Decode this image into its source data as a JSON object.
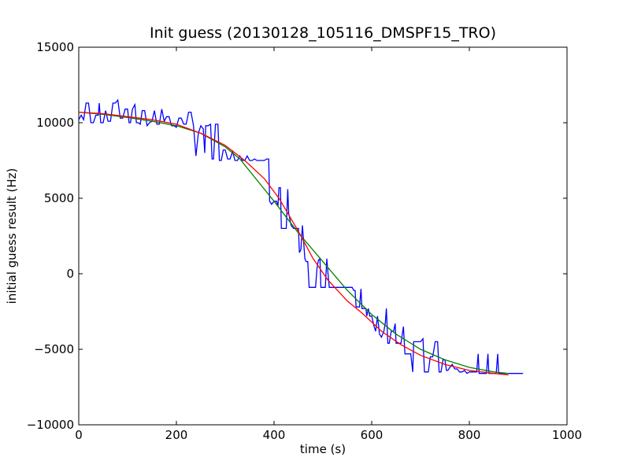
{
  "chart_data": {
    "type": "line",
    "title": "Init guess (20130128_105116_DMSPF15_TRO)",
    "xlabel": "time (s)",
    "ylabel": "initial guess result (Hz)",
    "xlim": [
      0,
      1000
    ],
    "ylim": [
      -10000,
      15000
    ],
    "xticks": [
      0,
      200,
      400,
      600,
      800,
      1000
    ],
    "yticks": [
      -10000,
      -5000,
      0,
      5000,
      10000,
      15000
    ],
    "xtick_labels": [
      "0",
      "200",
      "400",
      "600",
      "800",
      "1000"
    ],
    "ytick_labels": [
      "−10000",
      "−5000",
      "0",
      "5000",
      "10000",
      "15000"
    ],
    "grid": false,
    "legend": "none",
    "series": [
      {
        "color": "#0000ff",
        "points": [
          [
            0,
            10200
          ],
          [
            5,
            10500
          ],
          [
            10,
            10200
          ],
          [
            15,
            11300
          ],
          [
            20,
            11300
          ],
          [
            25,
            10000
          ],
          [
            30,
            10000
          ],
          [
            35,
            10500
          ],
          [
            40,
            10500
          ],
          [
            42,
            11300
          ],
          [
            45,
            10000
          ],
          [
            50,
            10000
          ],
          [
            55,
            10800
          ],
          [
            60,
            10100
          ],
          [
            65,
            10100
          ],
          [
            70,
            11300
          ],
          [
            75,
            11300
          ],
          [
            80,
            11500
          ],
          [
            85,
            10300
          ],
          [
            90,
            10300
          ],
          [
            95,
            10900
          ],
          [
            100,
            10900
          ],
          [
            103,
            10000
          ],
          [
            106,
            10000
          ],
          [
            110,
            10900
          ],
          [
            115,
            11200
          ],
          [
            118,
            10000
          ],
          [
            122,
            10000
          ],
          [
            126,
            9900
          ],
          [
            130,
            10800
          ],
          [
            135,
            10800
          ],
          [
            140,
            9800
          ],
          [
            145,
            10000
          ],
          [
            150,
            10100
          ],
          [
            155,
            10800
          ],
          [
            160,
            9900
          ],
          [
            165,
            9900
          ],
          [
            170,
            10900
          ],
          [
            175,
            10100
          ],
          [
            180,
            10400
          ],
          [
            185,
            10400
          ],
          [
            190,
            9800
          ],
          [
            195,
            9800
          ],
          [
            200,
            9700
          ],
          [
            205,
            10300
          ],
          [
            210,
            10300
          ],
          [
            215,
            9900
          ],
          [
            220,
            9900
          ],
          [
            225,
            10700
          ],
          [
            230,
            10700
          ],
          [
            235,
            9800
          ],
          [
            240,
            7800
          ],
          [
            245,
            9300
          ],
          [
            250,
            9800
          ],
          [
            255,
            9600
          ],
          [
            258,
            8000
          ],
          [
            260,
            9800
          ],
          [
            265,
            9800
          ],
          [
            270,
            9900
          ],
          [
            273,
            7600
          ],
          [
            276,
            7600
          ],
          [
            280,
            9900
          ],
          [
            285,
            9900
          ],
          [
            288,
            7500
          ],
          [
            292,
            7500
          ],
          [
            296,
            8200
          ],
          [
            300,
            8200
          ],
          [
            305,
            7600
          ],
          [
            310,
            7600
          ],
          [
            315,
            8100
          ],
          [
            320,
            7500
          ],
          [
            325,
            7500
          ],
          [
            330,
            7800
          ],
          [
            335,
            7500
          ],
          [
            340,
            7500
          ],
          [
            345,
            7800
          ],
          [
            350,
            7500
          ],
          [
            355,
            7500
          ],
          [
            360,
            7600
          ],
          [
            365,
            7500
          ],
          [
            380,
            7500
          ],
          [
            385,
            7600
          ],
          [
            389,
            7600
          ],
          [
            391,
            4800
          ],
          [
            395,
            4600
          ],
          [
            400,
            4800
          ],
          [
            405,
            4800
          ],
          [
            408,
            4500
          ],
          [
            410,
            5700
          ],
          [
            413,
            5700
          ],
          [
            415,
            3000
          ],
          [
            420,
            3000
          ],
          [
            425,
            3000
          ],
          [
            428,
            5600
          ],
          [
            430,
            4000
          ],
          [
            435,
            3200
          ],
          [
            440,
            3000
          ],
          [
            445,
            3000
          ],
          [
            450,
            3000
          ],
          [
            452,
            1400
          ],
          [
            455,
            1600
          ],
          [
            458,
            3200
          ],
          [
            460,
            2400
          ],
          [
            463,
            1000
          ],
          [
            466,
            800
          ],
          [
            469,
            800
          ],
          [
            472,
            -900
          ],
          [
            475,
            -900
          ],
          [
            480,
            -900
          ],
          [
            485,
            -900
          ],
          [
            488,
            400
          ],
          [
            491,
            900
          ],
          [
            494,
            1000
          ],
          [
            496,
            -900
          ],
          [
            500,
            -900
          ],
          [
            505,
            -900
          ],
          [
            508,
            1000
          ],
          [
            510,
            200
          ],
          [
            513,
            -900
          ],
          [
            516,
            -900
          ],
          [
            519,
            -900
          ],
          [
            522,
            -900
          ],
          [
            527,
            -900
          ],
          [
            530,
            -900
          ],
          [
            535,
            -900
          ],
          [
            540,
            -900
          ],
          [
            545,
            -900
          ],
          [
            550,
            -900
          ],
          [
            555,
            -900
          ],
          [
            560,
            -900
          ],
          [
            563,
            -1100
          ],
          [
            566,
            -1100
          ],
          [
            568,
            -2200
          ],
          [
            570,
            -2200
          ],
          [
            575,
            -2200
          ],
          [
            578,
            -1000
          ],
          [
            580,
            -2300
          ],
          [
            585,
            -2300
          ],
          [
            588,
            -2300
          ],
          [
            590,
            -2800
          ],
          [
            593,
            -2300
          ],
          [
            596,
            -2800
          ],
          [
            600,
            -2800
          ],
          [
            605,
            -3500
          ],
          [
            608,
            -3800
          ],
          [
            612,
            -2800
          ],
          [
            616,
            -4000
          ],
          [
            620,
            -4200
          ],
          [
            625,
            -3800
          ],
          [
            628,
            -3200
          ],
          [
            630,
            -2300
          ],
          [
            633,
            -4600
          ],
          [
            636,
            -4600
          ],
          [
            640,
            -3800
          ],
          [
            645,
            -3800
          ],
          [
            648,
            -3300
          ],
          [
            650,
            -4600
          ],
          [
            655,
            -4600
          ],
          [
            660,
            -4600
          ],
          [
            665,
            -3500
          ],
          [
            668,
            -5300
          ],
          [
            672,
            -5300
          ],
          [
            676,
            -5300
          ],
          [
            680,
            -5300
          ],
          [
            684,
            -6500
          ],
          [
            686,
            -4500
          ],
          [
            690,
            -4500
          ],
          [
            695,
            -4500
          ],
          [
            700,
            -4500
          ],
          [
            705,
            -4300
          ],
          [
            708,
            -6500
          ],
          [
            712,
            -6500
          ],
          [
            716,
            -6500
          ],
          [
            720,
            -5500
          ],
          [
            725,
            -5500
          ],
          [
            730,
            -4500
          ],
          [
            735,
            -4500
          ],
          [
            738,
            -6500
          ],
          [
            742,
            -6500
          ],
          [
            746,
            -5700
          ],
          [
            750,
            -5700
          ],
          [
            753,
            -6400
          ],
          [
            756,
            -6400
          ],
          [
            760,
            -6200
          ],
          [
            765,
            -6000
          ],
          [
            770,
            -6300
          ],
          [
            775,
            -6300
          ],
          [
            780,
            -6500
          ],
          [
            785,
            -6500
          ],
          [
            790,
            -6400
          ],
          [
            795,
            -6600
          ],
          [
            800,
            -6500
          ],
          [
            805,
            -6500
          ],
          [
            810,
            -6500
          ],
          [
            815,
            -6500
          ],
          [
            818,
            -5300
          ],
          [
            820,
            -6600
          ],
          [
            825,
            -6600
          ],
          [
            830,
            -6600
          ],
          [
            835,
            -6600
          ],
          [
            838,
            -5300
          ],
          [
            840,
            -6600
          ],
          [
            845,
            -6600
          ],
          [
            850,
            -6600
          ],
          [
            855,
            -6600
          ],
          [
            858,
            -5300
          ],
          [
            860,
            -6600
          ],
          [
            865,
            -6600
          ],
          [
            870,
            -6600
          ],
          [
            875,
            -6600
          ],
          [
            880,
            -6600
          ],
          [
            885,
            -6600
          ],
          [
            890,
            -6600
          ],
          [
            900,
            -6600
          ],
          [
            910,
            -6600
          ]
        ]
      },
      {
        "color": "#008000",
        "points": [
          [
            0,
            10700
          ],
          [
            50,
            10550
          ],
          [
            100,
            10350
          ],
          [
            150,
            10100
          ],
          [
            200,
            9800
          ],
          [
            250,
            9300
          ],
          [
            300,
            8400
          ],
          [
            330,
            7600
          ],
          [
            350,
            6800
          ],
          [
            400,
            4800
          ],
          [
            450,
            2700
          ],
          [
            500,
            800
          ],
          [
            550,
            -1100
          ],
          [
            600,
            -2700
          ],
          [
            650,
            -4000
          ],
          [
            700,
            -5000
          ],
          [
            750,
            -5700
          ],
          [
            800,
            -6200
          ],
          [
            850,
            -6500
          ],
          [
            880,
            -6600
          ]
        ]
      },
      {
        "color": "#ff0000",
        "points": [
          [
            0,
            10700
          ],
          [
            50,
            10600
          ],
          [
            100,
            10400
          ],
          [
            150,
            10200
          ],
          [
            200,
            9900
          ],
          [
            250,
            9300
          ],
          [
            300,
            8500
          ],
          [
            340,
            7500
          ],
          [
            380,
            6300
          ],
          [
            410,
            5000
          ],
          [
            430,
            3900
          ],
          [
            450,
            2800
          ],
          [
            480,
            1000
          ],
          [
            510,
            -400
          ],
          [
            550,
            -1800
          ],
          [
            580,
            -2600
          ],
          [
            620,
            -3800
          ],
          [
            660,
            -4700
          ],
          [
            700,
            -5400
          ],
          [
            750,
            -6000
          ],
          [
            800,
            -6400
          ],
          [
            850,
            -6600
          ],
          [
            880,
            -6700
          ]
        ]
      }
    ]
  }
}
